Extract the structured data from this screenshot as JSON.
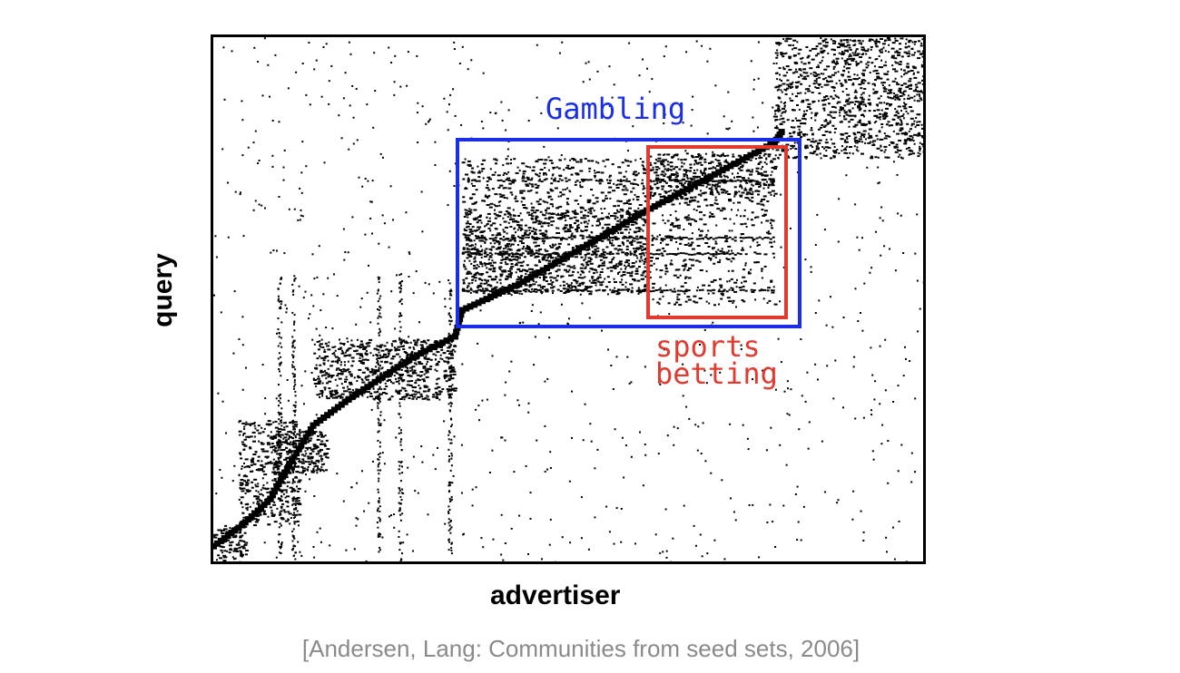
{
  "chart_data": {
    "type": "heatmap",
    "title": "",
    "xlabel": "advertiser",
    "ylabel": "query",
    "grid": false,
    "legend": "none",
    "description_source": "sparse binary query–advertiser matrix, reordered to reveal block communities",
    "annotations": [
      {
        "text": "Gambling",
        "color": "#1a2ee8",
        "box_cols": [
          0.345,
          0.825
        ],
        "box_rows": [
          0.195,
          0.55
        ]
      },
      {
        "text_lines": [
          "sports",
          "betting"
        ],
        "color": "#e23a2e",
        "box_cols": [
          0.61,
          0.8
        ],
        "box_rows": [
          0.21,
          0.535
        ]
      }
    ],
    "blocks": [
      {
        "cols": [
          0.0,
          0.045
        ],
        "rows": [
          0.93,
          1.0
        ],
        "density": 0.6
      },
      {
        "cols": [
          0.035,
          0.12
        ],
        "rows": [
          0.73,
          0.93
        ],
        "density": 0.45
      },
      {
        "cols": [
          0.08,
          0.16
        ],
        "rows": [
          0.75,
          0.83
        ],
        "density": 0.7
      },
      {
        "cols": [
          0.14,
          0.34
        ],
        "rows": [
          0.575,
          0.69
        ],
        "density": 0.55
      },
      {
        "cols": [
          0.35,
          0.61
        ],
        "rows": [
          0.33,
          0.49
        ],
        "density": 0.55
      },
      {
        "cols": [
          0.35,
          0.61
        ],
        "rows": [
          0.23,
          0.33
        ],
        "density": 0.28
      },
      {
        "cols": [
          0.61,
          0.79
        ],
        "rows": [
          0.22,
          0.31
        ],
        "density": 0.55
      },
      {
        "cols": [
          0.61,
          0.79
        ],
        "rows": [
          0.31,
          0.51
        ],
        "density": 0.18
      },
      {
        "cols": [
          0.79,
          1.0
        ],
        "rows": [
          0.0,
          0.23
        ],
        "density": 0.42
      }
    ],
    "line_rows": [
      0.27,
      0.38,
      0.48,
      0.41
    ],
    "line_extent": [
      0.35,
      0.79
    ],
    "diagonal": [
      [
        0.0,
        0.97
      ],
      [
        0.04,
        0.93
      ],
      [
        0.08,
        0.88
      ],
      [
        0.1,
        0.83
      ],
      [
        0.14,
        0.74
      ],
      [
        0.19,
        0.69
      ],
      [
        0.28,
        0.61
      ],
      [
        0.34,
        0.57
      ],
      [
        0.35,
        0.52
      ],
      [
        0.43,
        0.47
      ],
      [
        0.61,
        0.33
      ],
      [
        0.79,
        0.2
      ],
      [
        0.8,
        0.18
      ]
    ]
  },
  "caption": "[Andersen, Lang: Communities from seed sets, 2006]"
}
